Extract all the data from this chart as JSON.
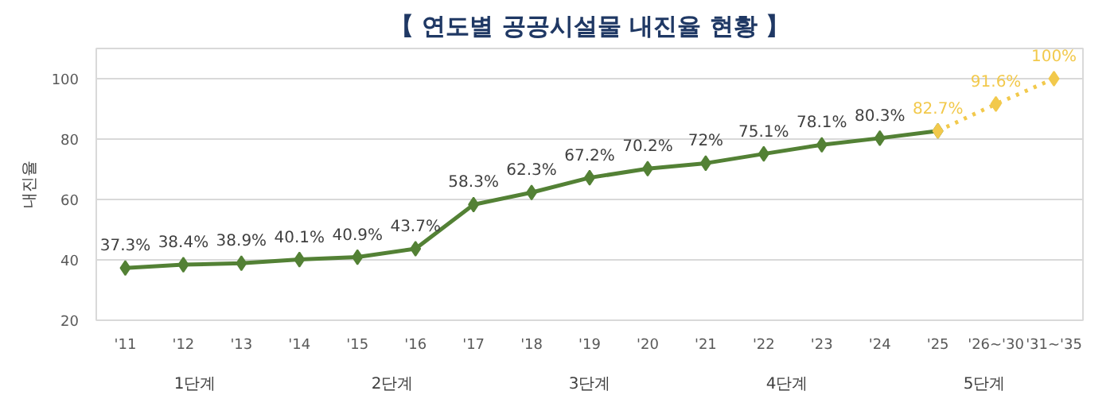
{
  "chart_data": {
    "type": "line",
    "title": "【 연도별 공공시설물 내진율 현황 】",
    "ylabel": "내진율",
    "categories": [
      "'11",
      "'12",
      "'13",
      "'14",
      "'15",
      "'16",
      "'17",
      "'18",
      "'19",
      "'20",
      "'21",
      "'22",
      "'23",
      "'24",
      "'25",
      "'26~'30",
      "'31~'35"
    ],
    "series": [
      {
        "color": "#538135",
        "line_style": "solid",
        "values": [
          37.3,
          38.4,
          38.9,
          40.1,
          40.9,
          43.7,
          58.3,
          62.3,
          67.2,
          70.2,
          72,
          75.1,
          78.1,
          80.3,
          82.7,
          null,
          null
        ],
        "value_labels": [
          "37.3%",
          "38.4%",
          "38.9%",
          "40.1%",
          "40.9%",
          "43.7%",
          "58.3%",
          "62.3%",
          "67.2%",
          "70.2%",
          "72%",
          "75.1%",
          "78.1%",
          "80.3%",
          null,
          null,
          null
        ]
      },
      {
        "color": "#f2c94c",
        "line_style": "dotted",
        "values": [
          null,
          null,
          null,
          null,
          null,
          null,
          null,
          null,
          null,
          null,
          null,
          null,
          null,
          null,
          82.7,
          91.6,
          100
        ],
        "value_labels": [
          null,
          null,
          null,
          null,
          null,
          null,
          null,
          null,
          null,
          null,
          null,
          null,
          null,
          null,
          "82.7%",
          "91.6%",
          "100%"
        ]
      }
    ],
    "marker": "diamond",
    "ylim": [
      20,
      110
    ],
    "yticks": [
      20,
      40,
      60,
      80,
      100
    ],
    "grid": "y",
    "annotations": [
      "1단계",
      "2단계",
      "3단계",
      "4단계",
      "5단계"
    ]
  }
}
